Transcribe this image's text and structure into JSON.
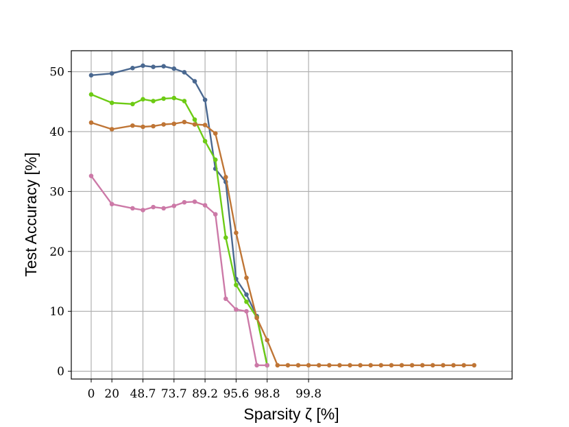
{
  "chart_data": {
    "type": "line",
    "title": "",
    "xlabel": "Sparsity ζ [%]",
    "ylabel": "Test Accuracy [%]",
    "x_tick_labels": [
      "0",
      "20",
      "48.7",
      "73.7",
      "89.2",
      "95.6",
      "98.8",
      "99.8"
    ],
    "x_tick_index": [
      0,
      2,
      5,
      8,
      11,
      14,
      17,
      21
    ],
    "y_ticks": [
      0,
      10,
      20,
      30,
      40,
      50
    ],
    "ylim": [
      -1.3,
      53.5
    ],
    "grid": true,
    "legend": "none",
    "series": [
      {
        "color": "#4a6890",
        "points": [
          [
            0,
            49.4
          ],
          [
            2,
            49.7
          ],
          [
            4,
            50.6
          ],
          [
            5,
            51.0
          ],
          [
            6,
            50.8
          ],
          [
            7,
            50.9
          ],
          [
            8,
            50.5
          ],
          [
            9,
            49.9
          ],
          [
            10,
            48.4
          ],
          [
            11,
            45.3
          ],
          [
            12,
            33.8
          ],
          [
            13,
            31.6
          ],
          [
            14,
            15.4
          ],
          [
            15,
            12.8
          ],
          [
            16,
            9.2
          ],
          [
            17,
            1.0
          ]
        ]
      },
      {
        "color": "#6dcb14",
        "points": [
          [
            0,
            46.2
          ],
          [
            2,
            44.8
          ],
          [
            4,
            44.6
          ],
          [
            5,
            45.4
          ],
          [
            6,
            45.1
          ],
          [
            7,
            45.5
          ],
          [
            8,
            45.6
          ],
          [
            9,
            45.1
          ],
          [
            10,
            42.0
          ],
          [
            11,
            38.4
          ],
          [
            12,
            35.3
          ],
          [
            13,
            22.3
          ],
          [
            14,
            14.4
          ],
          [
            15,
            11.6
          ],
          [
            16,
            9.0
          ],
          [
            17,
            1.0
          ]
        ]
      },
      {
        "color": "#bf7535",
        "points": [
          [
            0,
            41.5
          ],
          [
            2,
            40.4
          ],
          [
            4,
            41.0
          ],
          [
            5,
            40.8
          ],
          [
            6,
            40.9
          ],
          [
            7,
            41.2
          ],
          [
            8,
            41.3
          ],
          [
            9,
            41.6
          ],
          [
            10,
            41.2
          ],
          [
            11,
            41.1
          ],
          [
            12,
            39.7
          ],
          [
            13,
            32.4
          ],
          [
            14,
            23.1
          ],
          [
            15,
            15.6
          ],
          [
            16,
            8.9
          ],
          [
            17,
            5.2
          ],
          [
            18,
            1.0
          ],
          [
            19,
            1.0
          ],
          [
            20,
            1.0
          ],
          [
            21,
            1.0
          ],
          [
            22,
            1.0
          ],
          [
            23,
            1.0
          ],
          [
            24,
            1.0
          ],
          [
            25,
            1.0
          ],
          [
            26,
            1.0
          ],
          [
            27,
            1.0
          ],
          [
            28,
            1.0
          ],
          [
            29,
            1.0
          ],
          [
            30,
            1.0
          ],
          [
            31,
            1.0
          ],
          [
            32,
            1.0
          ],
          [
            33,
            1.0
          ],
          [
            34,
            1.0
          ],
          [
            35,
            1.0
          ],
          [
            36,
            1.0
          ],
          [
            37,
            1.0
          ]
        ]
      },
      {
        "color": "#cc79a7",
        "points": [
          [
            0,
            32.6
          ],
          [
            2,
            27.9
          ],
          [
            4,
            27.2
          ],
          [
            5,
            26.9
          ],
          [
            6,
            27.4
          ],
          [
            7,
            27.2
          ],
          [
            8,
            27.6
          ],
          [
            9,
            28.2
          ],
          [
            10,
            28.3
          ],
          [
            11,
            27.7
          ],
          [
            12,
            26.2
          ],
          [
            13,
            12.1
          ],
          [
            14,
            10.3
          ],
          [
            15,
            10.0
          ],
          [
            16,
            1.0
          ],
          [
            17,
            1.0
          ]
        ]
      }
    ]
  }
}
